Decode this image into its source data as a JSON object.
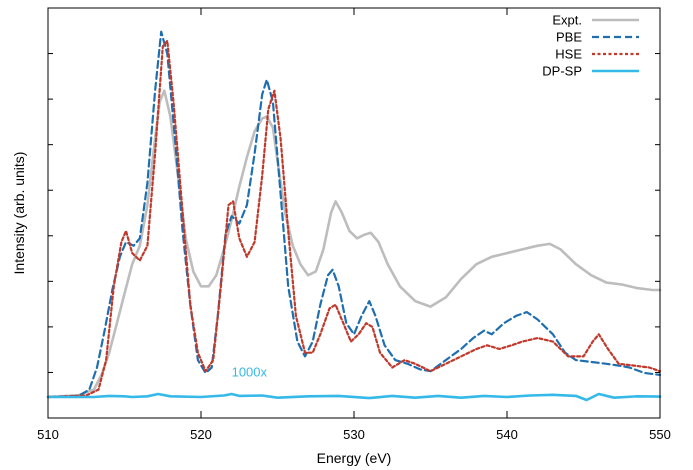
{
  "chart_data": {
    "type": "line",
    "title": "",
    "xlabel": "Energy (eV)",
    "ylabel": "Intensity (arb. units)",
    "xlim": [
      510,
      550
    ],
    "ylim": [
      0,
      1
    ],
    "x_ticks": [
      510,
      520,
      530,
      540,
      550
    ],
    "y_ticks_labeled": false,
    "y_minor_tick_marks": 8,
    "grid": false,
    "legend_position": "top-right",
    "annotations": [
      {
        "text": "1000x",
        "x": 522,
        "y": 0.05,
        "color": "#35b9e9"
      }
    ],
    "series": [
      {
        "name": "Expt.",
        "color": "#bdbdbd",
        "style": "solid",
        "points": [
          [
            510,
            0.0
          ],
          [
            512,
            0.005
          ],
          [
            513,
            0.02
          ],
          [
            513.5,
            0.06
          ],
          [
            514,
            0.12
          ],
          [
            514.5,
            0.2
          ],
          [
            515,
            0.28
          ],
          [
            515.5,
            0.36
          ],
          [
            516,
            0.41
          ],
          [
            516.5,
            0.52
          ],
          [
            517,
            0.7
          ],
          [
            517.3,
            0.8
          ],
          [
            517.6,
            0.83
          ],
          [
            518,
            0.76
          ],
          [
            518.5,
            0.6
          ],
          [
            519,
            0.43
          ],
          [
            519.5,
            0.34
          ],
          [
            520,
            0.3
          ],
          [
            520.5,
            0.3
          ],
          [
            521,
            0.33
          ],
          [
            521.5,
            0.4
          ],
          [
            522,
            0.48
          ],
          [
            522.5,
            0.57
          ],
          [
            523,
            0.65
          ],
          [
            523.5,
            0.72
          ],
          [
            524,
            0.755
          ],
          [
            524.3,
            0.76
          ],
          [
            524.7,
            0.73
          ],
          [
            525,
            0.64
          ],
          [
            525.5,
            0.5
          ],
          [
            526,
            0.41
          ],
          [
            526.5,
            0.36
          ],
          [
            527,
            0.33
          ],
          [
            527.5,
            0.34
          ],
          [
            528,
            0.4
          ],
          [
            528.5,
            0.5
          ],
          [
            528.8,
            0.53
          ],
          [
            529.2,
            0.5
          ],
          [
            529.7,
            0.45
          ],
          [
            530.2,
            0.43
          ],
          [
            530.7,
            0.44
          ],
          [
            531.1,
            0.445
          ],
          [
            531.6,
            0.42
          ],
          [
            532.2,
            0.36
          ],
          [
            533,
            0.3
          ],
          [
            534,
            0.26
          ],
          [
            535,
            0.245
          ],
          [
            536,
            0.27
          ],
          [
            537,
            0.32
          ],
          [
            538,
            0.36
          ],
          [
            539,
            0.38
          ],
          [
            540,
            0.39
          ],
          [
            541,
            0.4
          ],
          [
            542,
            0.41
          ],
          [
            542.8,
            0.415
          ],
          [
            543.5,
            0.4
          ],
          [
            544.5,
            0.36
          ],
          [
            545.5,
            0.33
          ],
          [
            546.5,
            0.31
          ],
          [
            547.5,
            0.305
          ],
          [
            548.5,
            0.295
          ],
          [
            549.5,
            0.29
          ],
          [
            550,
            0.29
          ]
        ]
      },
      {
        "name": "PBE",
        "color": "#1f6fb0",
        "style": "dashed",
        "points": [
          [
            510,
            0.0
          ],
          [
            512,
            0.003
          ],
          [
            512.7,
            0.02
          ],
          [
            513.2,
            0.08
          ],
          [
            513.7,
            0.18
          ],
          [
            514.2,
            0.29
          ],
          [
            514.7,
            0.38
          ],
          [
            515.1,
            0.42
          ],
          [
            515.6,
            0.41
          ],
          [
            516,
            0.43
          ],
          [
            516.5,
            0.58
          ],
          [
            517,
            0.83
          ],
          [
            517.4,
            0.99
          ],
          [
            517.8,
            0.93
          ],
          [
            518.3,
            0.7
          ],
          [
            518.8,
            0.45
          ],
          [
            519.3,
            0.25
          ],
          [
            519.8,
            0.1
          ],
          [
            520.3,
            0.065
          ],
          [
            520.7,
            0.08
          ],
          [
            521.1,
            0.22
          ],
          [
            521.6,
            0.44
          ],
          [
            522,
            0.49
          ],
          [
            522.5,
            0.47
          ],
          [
            523,
            0.52
          ],
          [
            523.5,
            0.66
          ],
          [
            524,
            0.82
          ],
          [
            524.3,
            0.86
          ],
          [
            524.7,
            0.8
          ],
          [
            525.2,
            0.55
          ],
          [
            525.7,
            0.3
          ],
          [
            526.3,
            0.15
          ],
          [
            526.8,
            0.11
          ],
          [
            527.3,
            0.15
          ],
          [
            527.8,
            0.25
          ],
          [
            528.3,
            0.33
          ],
          [
            528.6,
            0.345
          ],
          [
            529,
            0.3
          ],
          [
            529.5,
            0.2
          ],
          [
            530,
            0.17
          ],
          [
            530.5,
            0.22
          ],
          [
            531,
            0.26
          ],
          [
            531.4,
            0.22
          ],
          [
            532,
            0.14
          ],
          [
            532.7,
            0.1
          ],
          [
            533.5,
            0.09
          ],
          [
            534.3,
            0.075
          ],
          [
            535,
            0.07
          ],
          [
            536,
            0.1
          ],
          [
            537,
            0.13
          ],
          [
            537.8,
            0.16
          ],
          [
            538.5,
            0.18
          ],
          [
            539,
            0.17
          ],
          [
            539.8,
            0.2
          ],
          [
            540.6,
            0.22
          ],
          [
            541.3,
            0.23
          ],
          [
            542,
            0.21
          ],
          [
            543,
            0.17
          ],
          [
            543.8,
            0.12
          ],
          [
            544.5,
            0.1
          ],
          [
            545.5,
            0.095
          ],
          [
            546.5,
            0.09
          ],
          [
            547.3,
            0.085
          ],
          [
            548,
            0.08
          ],
          [
            549,
            0.065
          ],
          [
            550,
            0.06
          ]
        ]
      },
      {
        "name": "HSE",
        "color": "#c0392b",
        "style": "dotted",
        "points": [
          [
            510,
            0.0
          ],
          [
            512.5,
            0.004
          ],
          [
            513.3,
            0.02
          ],
          [
            513.8,
            0.1
          ],
          [
            514.3,
            0.3
          ],
          [
            514.8,
            0.42
          ],
          [
            515.1,
            0.45
          ],
          [
            515.5,
            0.39
          ],
          [
            516,
            0.37
          ],
          [
            516.5,
            0.41
          ],
          [
            517,
            0.66
          ],
          [
            517.5,
            0.95
          ],
          [
            517.8,
            0.965
          ],
          [
            518.2,
            0.8
          ],
          [
            518.8,
            0.5
          ],
          [
            519.3,
            0.25
          ],
          [
            519.8,
            0.12
          ],
          [
            520.3,
            0.07
          ],
          [
            520.8,
            0.1
          ],
          [
            521.3,
            0.3
          ],
          [
            521.8,
            0.52
          ],
          [
            522.1,
            0.53
          ],
          [
            522.5,
            0.43
          ],
          [
            523,
            0.38
          ],
          [
            523.5,
            0.42
          ],
          [
            524,
            0.6
          ],
          [
            524.4,
            0.78
          ],
          [
            524.8,
            0.83
          ],
          [
            525.2,
            0.7
          ],
          [
            525.7,
            0.45
          ],
          [
            526.2,
            0.22
          ],
          [
            526.8,
            0.12
          ],
          [
            527.3,
            0.12
          ],
          [
            527.8,
            0.17
          ],
          [
            528.4,
            0.24
          ],
          [
            528.8,
            0.25
          ],
          [
            529.3,
            0.2
          ],
          [
            529.8,
            0.15
          ],
          [
            530.3,
            0.17
          ],
          [
            530.8,
            0.2
          ],
          [
            531.2,
            0.19
          ],
          [
            531.7,
            0.12
          ],
          [
            532.5,
            0.08
          ],
          [
            533.3,
            0.1
          ],
          [
            534,
            0.09
          ],
          [
            535,
            0.07
          ],
          [
            536,
            0.09
          ],
          [
            537,
            0.11
          ],
          [
            538,
            0.13
          ],
          [
            538.7,
            0.14
          ],
          [
            539.5,
            0.13
          ],
          [
            540.3,
            0.14
          ],
          [
            541,
            0.15
          ],
          [
            542,
            0.16
          ],
          [
            543,
            0.15
          ],
          [
            544,
            0.11
          ],
          [
            545,
            0.11
          ],
          [
            545.6,
            0.15
          ],
          [
            546,
            0.17
          ],
          [
            546.6,
            0.13
          ],
          [
            547.3,
            0.09
          ],
          [
            548.3,
            0.085
          ],
          [
            549.3,
            0.08
          ],
          [
            550,
            0.07
          ]
        ]
      },
      {
        "name": "DP-SP",
        "color": "#35b9e9",
        "style": "solid",
        "points": [
          [
            510,
            0.0
          ],
          [
            513,
            0.0
          ],
          [
            514,
            0.003
          ],
          [
            515,
            0.002
          ],
          [
            515.5,
            0.0
          ],
          [
            516.5,
            0.002
          ],
          [
            517.2,
            0.008
          ],
          [
            518,
            0.002
          ],
          [
            520,
            0.0
          ],
          [
            521.5,
            0.004
          ],
          [
            522,
            0.008
          ],
          [
            522.5,
            0.003
          ],
          [
            524,
            0.004
          ],
          [
            525,
            -0.002
          ],
          [
            527,
            0.002
          ],
          [
            529,
            0.003
          ],
          [
            531,
            -0.003
          ],
          [
            532.5,
            0.003
          ],
          [
            534,
            -0.002
          ],
          [
            535.5,
            0.003
          ],
          [
            537,
            -0.002
          ],
          [
            538.5,
            0.003
          ],
          [
            540,
            0.0
          ],
          [
            541.5,
            0.004
          ],
          [
            543,
            0.006
          ],
          [
            544.5,
            0.003
          ],
          [
            545.2,
            -0.008
          ],
          [
            546,
            0.008
          ],
          [
            547,
            -0.002
          ],
          [
            548.5,
            0.002
          ],
          [
            550,
            0.001
          ]
        ]
      }
    ]
  }
}
